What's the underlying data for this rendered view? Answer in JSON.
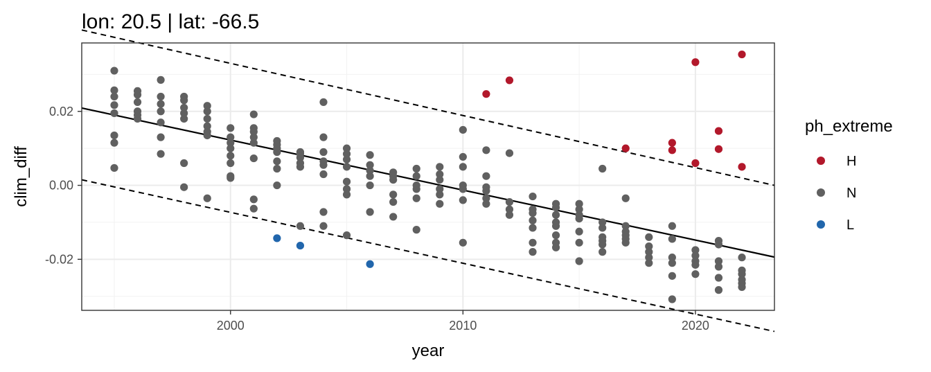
{
  "chart_data": {
    "type": "scatter",
    "title": "lon: 20.5 | lat: -66.5",
    "xlabel": "year",
    "ylabel": "clim_diff",
    "xlim": [
      1993.6,
      2023.4
    ],
    "ylim": [
      -0.0338,
      0.0385
    ],
    "x_ticks": [
      2000,
      2010,
      2020
    ],
    "x_tick_labels": [
      "2000",
      "2010",
      "2020"
    ],
    "y_ticks": [
      0.02,
      0.0,
      -0.02
    ],
    "y_tick_labels": [
      "0.02",
      "0.00",
      "-0.02"
    ],
    "grid": true,
    "legend": {
      "title": "ph_extreme",
      "position": "right",
      "entries": [
        {
          "label": "H",
          "color": "#b2182b"
        },
        {
          "label": "N",
          "color": "#606060"
        },
        {
          "label": "L",
          "color": "#2166ac"
        }
      ]
    },
    "trend_line": {
      "x": [
        1993.6,
        2023.4
      ],
      "y": [
        0.0209,
        -0.0194
      ]
    },
    "band_upper": {
      "x": [
        1993.6,
        2023.4
      ],
      "y": [
        0.042,
        0.0
      ]
    },
    "band_lower": {
      "x": [
        1993.6,
        2023.4
      ],
      "y": [
        0.0015,
        -0.0395
      ]
    },
    "series": [
      {
        "name": "H",
        "color": "#b2182b",
        "points": [
          [
            2011,
            0.0247
          ],
          [
            2012,
            0.0284
          ],
          [
            2017,
            0.01
          ],
          [
            2019,
            0.0115
          ],
          [
            2019,
            0.0095
          ],
          [
            2020,
            0.0333
          ],
          [
            2020,
            0.006
          ],
          [
            2021,
            0.0147
          ],
          [
            2021,
            0.0098
          ],
          [
            2022,
            0.0354
          ],
          [
            2022,
            0.005
          ]
        ]
      },
      {
        "name": "N",
        "color": "#606060",
        "points": [
          [
            1995,
            0.031
          ],
          [
            1995,
            0.0257
          ],
          [
            1995,
            0.024
          ],
          [
            1995,
            0.0217
          ],
          [
            1995,
            0.0195
          ],
          [
            1995,
            0.0135
          ],
          [
            1995,
            0.0115
          ],
          [
            1995,
            0.0047
          ],
          [
            1996,
            0.0255
          ],
          [
            1996,
            0.0245
          ],
          [
            1996,
            0.0225
          ],
          [
            1996,
            0.02
          ],
          [
            1996,
            0.019
          ],
          [
            1996,
            0.018
          ],
          [
            1997,
            0.0285
          ],
          [
            1997,
            0.024
          ],
          [
            1997,
            0.022
          ],
          [
            1997,
            0.02
          ],
          [
            1997,
            0.017
          ],
          [
            1997,
            0.013
          ],
          [
            1997,
            0.0085
          ],
          [
            1998,
            0.024
          ],
          [
            1998,
            0.023
          ],
          [
            1998,
            0.021
          ],
          [
            1998,
            0.0195
          ],
          [
            1998,
            0.018
          ],
          [
            1998,
            0.006
          ],
          [
            1998,
            -0.0005
          ],
          [
            1999,
            0.0215
          ],
          [
            1999,
            0.02
          ],
          [
            1999,
            0.018
          ],
          [
            1999,
            0.016
          ],
          [
            1999,
            0.0145
          ],
          [
            1999,
            0.0135
          ],
          [
            1999,
            -0.0035
          ],
          [
            2000,
            0.0155
          ],
          [
            2000,
            0.013
          ],
          [
            2000,
            0.0115
          ],
          [
            2000,
            0.01
          ],
          [
            2000,
            0.008
          ],
          [
            2000,
            0.006
          ],
          [
            2000,
            0.0025
          ],
          [
            2000,
            0.002
          ],
          [
            2001,
            0.0192
          ],
          [
            2001,
            0.0155
          ],
          [
            2001,
            0.0145
          ],
          [
            2001,
            0.013
          ],
          [
            2001,
            0.0115
          ],
          [
            2001,
            0.0073
          ],
          [
            2001,
            -0.0038
          ],
          [
            2001,
            -0.0063
          ],
          [
            2002,
            0.012
          ],
          [
            2002,
            0.011
          ],
          [
            2002,
            0.01
          ],
          [
            2002,
            0.009
          ],
          [
            2002,
            0.0065
          ],
          [
            2002,
            0.0045
          ],
          [
            2002,
            0.0
          ],
          [
            2003,
            0.009
          ],
          [
            2003,
            0.0085
          ],
          [
            2003,
            0.0075
          ],
          [
            2003,
            0.006
          ],
          [
            2003,
            0.005
          ],
          [
            2003,
            -0.011
          ],
          [
            2004,
            0.0225
          ],
          [
            2004,
            0.013
          ],
          [
            2004,
            0.009
          ],
          [
            2004,
            0.0065
          ],
          [
            2004,
            0.0055
          ],
          [
            2004,
            0.003
          ],
          [
            2004,
            -0.0072
          ],
          [
            2004,
            -0.011
          ],
          [
            2005,
            0.01
          ],
          [
            2005,
            0.0085
          ],
          [
            2005,
            0.007
          ],
          [
            2005,
            0.005
          ],
          [
            2005,
            0.001
          ],
          [
            2005,
            -0.001
          ],
          [
            2005,
            -0.0025
          ],
          [
            2005,
            -0.0135
          ],
          [
            2006,
            0.0082
          ],
          [
            2006,
            0.0055
          ],
          [
            2006,
            0.004
          ],
          [
            2006,
            0.0025
          ],
          [
            2006,
            0.0
          ],
          [
            2006,
            -0.0072
          ],
          [
            2007,
            0.0035
          ],
          [
            2007,
            0.0025
          ],
          [
            2007,
            0.0015
          ],
          [
            2007,
            -0.0025
          ],
          [
            2007,
            -0.0045
          ],
          [
            2007,
            -0.0085
          ],
          [
            2008,
            0.0045
          ],
          [
            2008,
            0.0025
          ],
          [
            2008,
            0.0
          ],
          [
            2008,
            -0.001
          ],
          [
            2008,
            -0.0035
          ],
          [
            2008,
            -0.012
          ],
          [
            2009,
            0.005
          ],
          [
            2009,
            0.003
          ],
          [
            2009,
            0.0015
          ],
          [
            2009,
            -0.001
          ],
          [
            2009,
            -0.0025
          ],
          [
            2009,
            -0.005
          ],
          [
            2010,
            0.015
          ],
          [
            2010,
            0.0077
          ],
          [
            2010,
            0.005
          ],
          [
            2010,
            0.0
          ],
          [
            2010,
            -0.001
          ],
          [
            2010,
            -0.004
          ],
          [
            2010,
            -0.0155
          ],
          [
            2011,
            0.0095
          ],
          [
            2011,
            0.0025
          ],
          [
            2011,
            -0.0005
          ],
          [
            2011,
            -0.0015
          ],
          [
            2011,
            -0.0035
          ],
          [
            2011,
            -0.005
          ],
          [
            2012,
            0.0087
          ],
          [
            2012,
            -0.0045
          ],
          [
            2012,
            -0.0065
          ],
          [
            2012,
            -0.008
          ],
          [
            2013,
            -0.003
          ],
          [
            2013,
            -0.0065
          ],
          [
            2013,
            -0.0075
          ],
          [
            2013,
            -0.0095
          ],
          [
            2013,
            -0.0115
          ],
          [
            2013,
            -0.0155
          ],
          [
            2013,
            -0.018
          ],
          [
            2014,
            -0.005
          ],
          [
            2014,
            -0.006
          ],
          [
            2014,
            -0.008
          ],
          [
            2014,
            -0.01
          ],
          [
            2014,
            -0.011
          ],
          [
            2014,
            -0.0135
          ],
          [
            2014,
            -0.0155
          ],
          [
            2014,
            -0.0168
          ],
          [
            2015,
            -0.005
          ],
          [
            2015,
            -0.0065
          ],
          [
            2015,
            -0.008
          ],
          [
            2015,
            -0.009
          ],
          [
            2015,
            -0.0125
          ],
          [
            2015,
            -0.0155
          ],
          [
            2015,
            -0.0205
          ],
          [
            2016,
            0.0045
          ],
          [
            2016,
            -0.01
          ],
          [
            2016,
            -0.0115
          ],
          [
            2016,
            -0.014
          ],
          [
            2016,
            -0.015
          ],
          [
            2016,
            -0.016
          ],
          [
            2016,
            -0.018
          ],
          [
            2017,
            -0.0035
          ],
          [
            2017,
            -0.011
          ],
          [
            2017,
            -0.0125
          ],
          [
            2017,
            -0.0135
          ],
          [
            2017,
            -0.0145
          ],
          [
            2017,
            -0.0155
          ],
          [
            2018,
            -0.014
          ],
          [
            2018,
            -0.0165
          ],
          [
            2018,
            -0.018
          ],
          [
            2018,
            -0.0195
          ],
          [
            2018,
            -0.021
          ],
          [
            2019,
            -0.011
          ],
          [
            2019,
            -0.0145
          ],
          [
            2019,
            -0.0195
          ],
          [
            2019,
            -0.021
          ],
          [
            2019,
            -0.0245
          ],
          [
            2019,
            -0.0308
          ],
          [
            2020,
            -0.0175
          ],
          [
            2020,
            -0.019
          ],
          [
            2020,
            -0.0205
          ],
          [
            2020,
            -0.0215
          ],
          [
            2020,
            -0.024
          ],
          [
            2021,
            -0.015
          ],
          [
            2021,
            -0.016
          ],
          [
            2021,
            -0.0205
          ],
          [
            2021,
            -0.022
          ],
          [
            2021,
            -0.025
          ],
          [
            2021,
            -0.0283
          ],
          [
            2022,
            -0.0195
          ],
          [
            2022,
            -0.023
          ],
          [
            2022,
            -0.024
          ],
          [
            2022,
            -0.0255
          ],
          [
            2022,
            -0.0265
          ],
          [
            2022,
            -0.0275
          ]
        ]
      },
      {
        "name": "L",
        "color": "#2166ac",
        "points": [
          [
            2002,
            -0.0143
          ],
          [
            2003,
            -0.0163
          ],
          [
            2006,
            -0.0213
          ]
        ]
      }
    ]
  }
}
